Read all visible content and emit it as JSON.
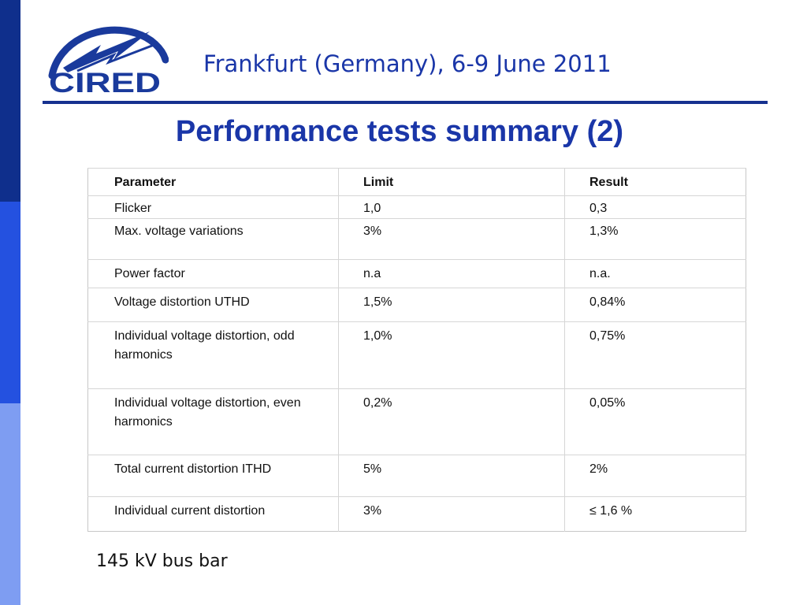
{
  "logo": {
    "text": "CIRED"
  },
  "header": {
    "event": "Frankfurt (Germany), 6-9 June 2011"
  },
  "title": "Performance tests summary (2)",
  "table": {
    "columns": [
      "Parameter",
      "Limit",
      "Result"
    ],
    "rows": [
      [
        "Flicker",
        "1,0",
        "0,3"
      ],
      [
        "Max. voltage variations",
        "3%",
        "1,3%"
      ],
      [
        "Power factor",
        "n.a",
        "n.a."
      ],
      [
        "Voltage distortion UTHD",
        "1,5%",
        "0,84%"
      ],
      [
        "Individual voltage distortion, odd harmonics",
        "1,0%",
        "0,75%"
      ],
      [
        "Individual voltage distortion, even harmonics",
        "0,2%",
        "0,05%"
      ],
      [
        "Total current distortion ITHD",
        "5%",
        "2%"
      ],
      [
        "Individual current distortion",
        "3%",
        "≤ 1,6 %"
      ]
    ]
  },
  "caption": "145 kV bus bar"
}
